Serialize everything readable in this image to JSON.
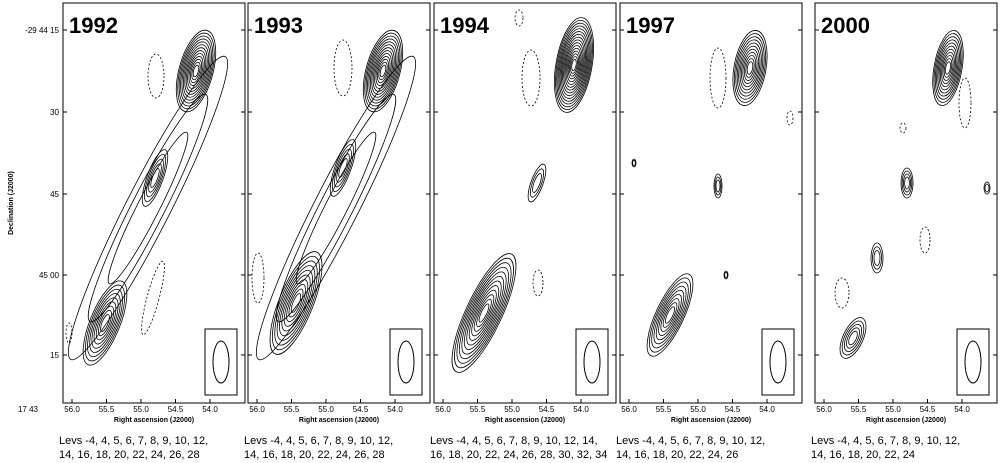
{
  "y_axis": {
    "label": "Declination (J2000)",
    "ticks": [
      "-29 44 15",
      "30",
      "45",
      "45 00",
      "15"
    ]
  },
  "x_axis": {
    "label": "Right ascension (J2000)",
    "prefix": "17 43",
    "ticks": [
      "56.0",
      "55.5",
      "55.0",
      "54.5",
      "54.0"
    ]
  },
  "panels": [
    {
      "year": "1992",
      "levels": [
        "Levs -4, 4, 5, 6, 7, 8, 9, 10, 12,",
        "14, 16, 18, 20, 22, 24, 26, 28"
      ]
    },
    {
      "year": "1993",
      "levels": [
        "Levs -4, 4, 5, 6, 7, 8, 9, 10, 12,",
        "14, 16, 18, 20, 22, 24, 26, 28"
      ]
    },
    {
      "year": "1994",
      "levels": [
        "Levs -4, 4, 5, 6, 7, 8, 9, 10, 12, 14,",
        "16, 18, 20, 22, 24, 26, 28, 30, 32, 34"
      ]
    },
    {
      "year": "1997",
      "levels": [
        "Levs -4, 4, 5, 6, 7, 8, 9, 10, 12,",
        "14, 16, 18, 20, 22, 24, 26"
      ]
    },
    {
      "year": "2000",
      "levels": [
        "Levs -4, 4, 5, 6, 7, 8, 9, 10, 12,",
        "14, 16, 18, 20, 22, 24"
      ]
    }
  ]
}
